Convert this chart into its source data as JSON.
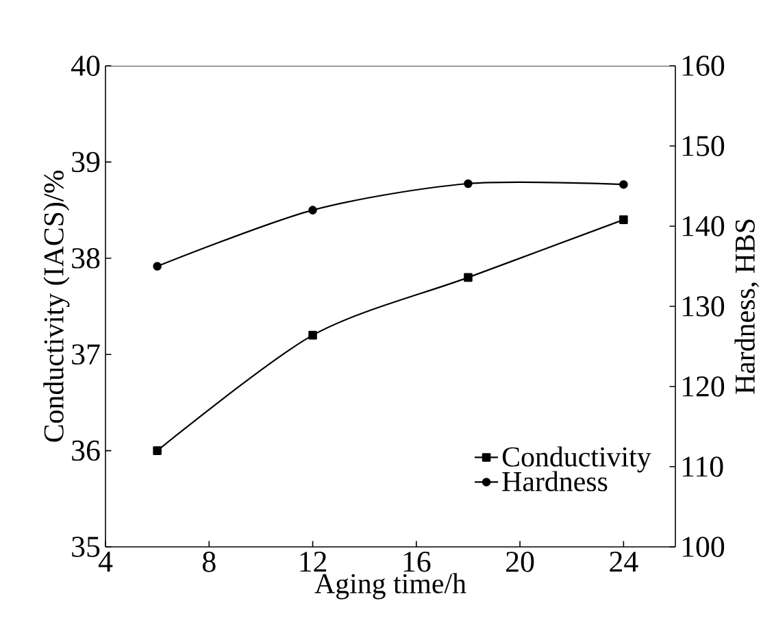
{
  "chart_data": {
    "type": "line",
    "xlabel": "Aging time/h",
    "ylabel": "Conductivity (IACS)/%",
    "y2label": "Hardness, HBS",
    "xlim": [
      4,
      26
    ],
    "xticks": [
      4,
      8,
      12,
      16,
      20,
      24
    ],
    "ylim": [
      35,
      40
    ],
    "yticks": [
      35,
      36,
      37,
      38,
      39,
      40
    ],
    "y2lim": [
      100,
      160
    ],
    "y2ticks": [
      100,
      110,
      120,
      130,
      140,
      150,
      160
    ],
    "x": [
      6,
      12,
      18,
      24
    ],
    "legend": "bottom right",
    "grid": false,
    "line_style": "solid",
    "series": [
      {
        "name": "Conductivity",
        "color": "#000000",
        "marker": "square",
        "values": [
          36.0,
          37.2,
          37.8,
          38.4
        ]
      },
      {
        "name": "Hardness",
        "color": "#000000",
        "marker": "circle",
        "axis": "y2",
        "values": [
          135,
          142,
          145.3,
          145.2
        ]
      }
    ]
  }
}
